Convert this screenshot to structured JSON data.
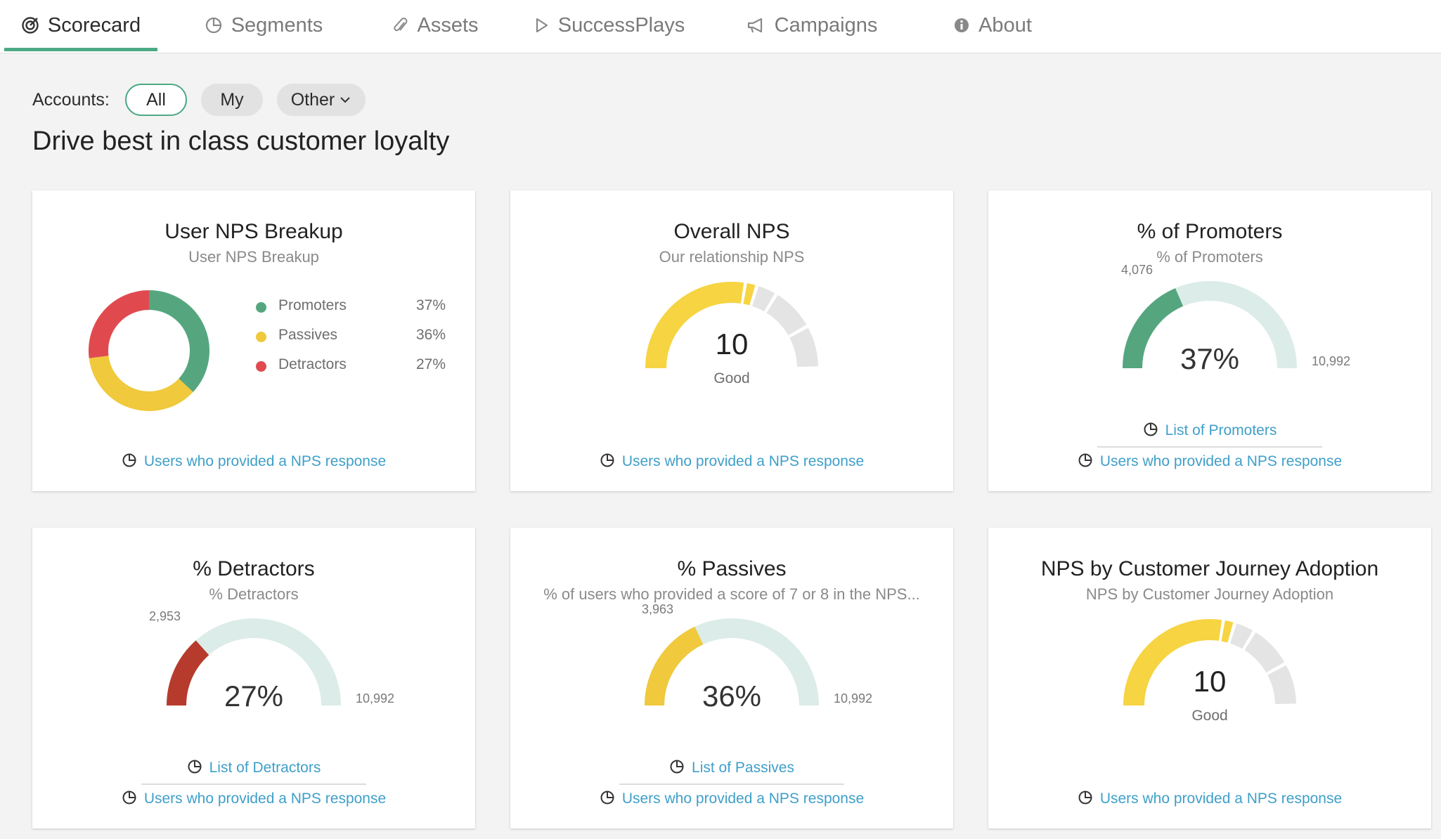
{
  "nav": {
    "tabs": [
      {
        "label": "Scorecard",
        "icon": "target-icon"
      },
      {
        "label": "Segments",
        "icon": "pie-icon"
      },
      {
        "label": "Assets",
        "icon": "paperclip-icon"
      },
      {
        "label": "SuccessPlays",
        "icon": "play-icon"
      },
      {
        "label": "Campaigns",
        "icon": "megaphone-icon"
      },
      {
        "label": "About",
        "icon": "info-icon"
      }
    ],
    "active": "Scorecard"
  },
  "accounts": {
    "label": "Accounts:",
    "options": [
      "All",
      "My",
      "Other"
    ],
    "selected": "All"
  },
  "headline": "Drive best in class customer loyalty",
  "colors": {
    "accent": "#4caa84",
    "link": "#3f9fc9",
    "promoters": "#55a67f",
    "passives": "#f0c93c",
    "detractors": "#e04a4f",
    "detractor_gauge": "#b63b2c",
    "track": "#dcece8",
    "nps_yellow": "#f6d442",
    "nps_grey": "#e4e4e4"
  },
  "cards": {
    "breakup": {
      "title": "User NPS Breakup",
      "subtitle": "User NPS Breakup",
      "legend": [
        {
          "label": "Promoters",
          "value": "37%"
        },
        {
          "label": "Passives",
          "value": "36%"
        },
        {
          "label": "Detractors",
          "value": "27%"
        }
      ],
      "link": "Users who provided a NPS response"
    },
    "overall": {
      "title": "Overall NPS",
      "subtitle": "Our relationship NPS",
      "value": "10",
      "rating": "Good",
      "link": "Users who provided a NPS response"
    },
    "promoters": {
      "title": "% of Promoters",
      "subtitle": "% of Promoters",
      "percent": "37%",
      "count": "4,076",
      "total": "10,992",
      "list_link": "List of Promoters",
      "link": "Users who provided a NPS response"
    },
    "detractors": {
      "title": "% Detractors",
      "subtitle": "% Detractors",
      "percent": "27%",
      "count": "2,953",
      "total": "10,992",
      "list_link": "List of Detractors",
      "link": "Users who provided a NPS response"
    },
    "passives": {
      "title": "% Passives",
      "subtitle": "% of users who provided a score of 7 or 8 in the NPS...",
      "percent": "36%",
      "count": "3,963",
      "total": "10,992",
      "list_link": "List of Passives",
      "link": "Users who provided a NPS response"
    },
    "journey": {
      "title": "NPS by Customer Journey Adoption",
      "subtitle": "NPS by Customer Journey Adoption",
      "value": "10",
      "rating": "Good",
      "link": "Users who provided a NPS response"
    }
  },
  "chart_data": [
    {
      "type": "pie",
      "title": "User NPS Breakup",
      "categories": [
        "Promoters",
        "Passives",
        "Detractors"
      ],
      "values": [
        37,
        36,
        27
      ]
    },
    {
      "type": "gauge",
      "title": "Overall NPS",
      "value": 10,
      "range": [
        -100,
        100
      ]
    },
    {
      "type": "gauge",
      "title": "% of Promoters",
      "value": 4076,
      "range": [
        0,
        10992
      ],
      "percent": 37
    },
    {
      "type": "gauge",
      "title": "% Detractors",
      "value": 2953,
      "range": [
        0,
        10992
      ],
      "percent": 27
    },
    {
      "type": "gauge",
      "title": "% Passives",
      "value": 3963,
      "range": [
        0,
        10992
      ],
      "percent": 36
    },
    {
      "type": "gauge",
      "title": "NPS by Customer Journey Adoption",
      "value": 10,
      "range": [
        -100,
        100
      ]
    }
  ]
}
